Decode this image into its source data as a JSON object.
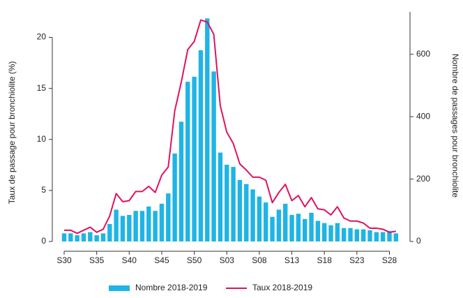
{
  "chart_data": {
    "type": "bar",
    "categories": [
      "S30",
      null,
      null,
      null,
      null,
      "S35",
      null,
      null,
      null,
      null,
      "S40",
      null,
      null,
      null,
      null,
      "S45",
      null,
      null,
      null,
      null,
      "S50",
      null,
      null,
      null,
      null,
      "S03",
      null,
      null,
      null,
      null,
      "S08",
      null,
      null,
      null,
      null,
      "S13",
      null,
      null,
      null,
      null,
      "S18",
      null,
      null,
      null,
      null,
      "S23",
      null,
      null,
      null,
      null,
      "S28",
      null
    ],
    "ylabel": "Taux de passage pour bronchiolite (%)",
    "y2label": "Nombre de passages pour bronchiolite",
    "ylim": [
      0,
      22.5
    ],
    "yticks": [
      0,
      5,
      10,
      15,
      20
    ],
    "y2lim": [
      0,
      736
    ],
    "y2ticks": [
      0,
      200,
      400,
      600
    ],
    "legend": "bottom",
    "series": [
      {
        "name": "Nombre 2018-2019",
        "type": "bar",
        "axis": "y2",
        "color": "#1fb4e6",
        "values": [
          26,
          26,
          20,
          26,
          30,
          20,
          26,
          56,
          102,
          82,
          85,
          98,
          98,
          112,
          98,
          121,
          154,
          282,
          384,
          512,
          528,
          613,
          715,
          545,
          285,
          246,
          239,
          197,
          184,
          167,
          144,
          125,
          79,
          102,
          121,
          85,
          89,
          72,
          92,
          66,
          59,
          52,
          59,
          43,
          43,
          39,
          39,
          36,
          30,
          30,
          33,
          26
        ]
      },
      {
        "name": "Taux 2018-2019",
        "type": "line",
        "axis": "y",
        "color": "#e0115f",
        "values": [
          1.1,
          1.1,
          0.8,
          1.1,
          1.4,
          0.9,
          1.2,
          2.5,
          4.7,
          3.9,
          4.0,
          4.9,
          4.9,
          5.4,
          4.8,
          6.5,
          7.3,
          12.8,
          15.6,
          18.8,
          19.6,
          21.7,
          21.5,
          20.3,
          13.3,
          10.7,
          9.6,
          7.6,
          7.0,
          6.3,
          6.3,
          6.0,
          3.8,
          4.8,
          5.6,
          4.0,
          4.5,
          3.4,
          4.3,
          3.2,
          3.1,
          2.6,
          3.4,
          2.3,
          2.0,
          2.0,
          1.8,
          1.3,
          1.3,
          1.2,
          0.9,
          1.0
        ]
      }
    ]
  }
}
